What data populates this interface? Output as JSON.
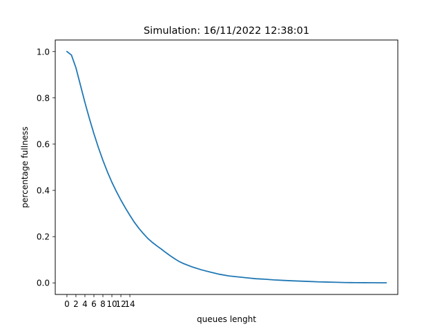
{
  "chart_data": {
    "type": "line",
    "title": "Simulation: 16/11/2022 12:38:01",
    "xlabel": "queues lenght",
    "ylabel": "percentage fullness",
    "xlim": [
      -2.6,
      73.6
    ],
    "ylim": [
      -0.05,
      1.05
    ],
    "x_ticks": [
      0,
      2,
      4,
      6,
      8,
      10,
      12,
      14
    ],
    "x_tick_labels": [
      "0",
      "2",
      "4",
      "6",
      "8",
      "10",
      "12",
      "14"
    ],
    "y_ticks": [
      0.0,
      0.2,
      0.4,
      0.6,
      0.8,
      1.0
    ],
    "y_tick_labels": [
      "0.0",
      "0.2",
      "0.4",
      "0.6",
      "0.8",
      "1.0"
    ],
    "grid": false,
    "legend": "none",
    "series": [
      {
        "color": "#1f77b4",
        "x": [
          0,
          1,
          2,
          3,
          4,
          5,
          6,
          7,
          8,
          9,
          10,
          11,
          12,
          13,
          14,
          15,
          16,
          17,
          18,
          19,
          20,
          21,
          22,
          23,
          24,
          25,
          26,
          28,
          30,
          32,
          34,
          36,
          38,
          40,
          42,
          44,
          46,
          48,
          50,
          52,
          54,
          56,
          58,
          60,
          62,
          64,
          66,
          68,
          70,
          71
        ],
        "values": [
          1.0,
          0.985,
          0.93,
          0.855,
          0.78,
          0.71,
          0.645,
          0.585,
          0.53,
          0.48,
          0.435,
          0.395,
          0.358,
          0.324,
          0.292,
          0.262,
          0.236,
          0.213,
          0.192,
          0.175,
          0.16,
          0.146,
          0.131,
          0.117,
          0.104,
          0.092,
          0.083,
          0.068,
          0.056,
          0.046,
          0.037,
          0.03,
          0.026,
          0.022,
          0.018,
          0.016,
          0.013,
          0.011,
          0.009,
          0.0075,
          0.006,
          0.0045,
          0.0035,
          0.0025,
          0.0015,
          0.001,
          0.0008,
          0.0006,
          0.0004,
          0.0003
        ]
      }
    ]
  }
}
